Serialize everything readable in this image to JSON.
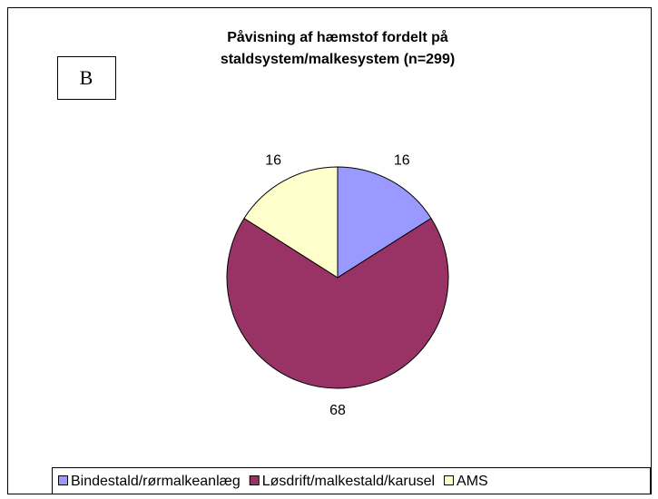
{
  "chart_data": {
    "type": "pie",
    "title": [
      "Påvisning af hæmstof fordelt på",
      "staldsystem/malkesystem (n=299)"
    ],
    "annotation": "B",
    "categories": [
      "Bindestald/rørmalkeanlæg",
      "Løsdrift/malkestald/karusel",
      "AMS"
    ],
    "values": [
      16,
      68,
      16
    ],
    "colors": [
      "#9999ff",
      "#993366",
      "#ffffcc"
    ],
    "legend": "bottom"
  }
}
